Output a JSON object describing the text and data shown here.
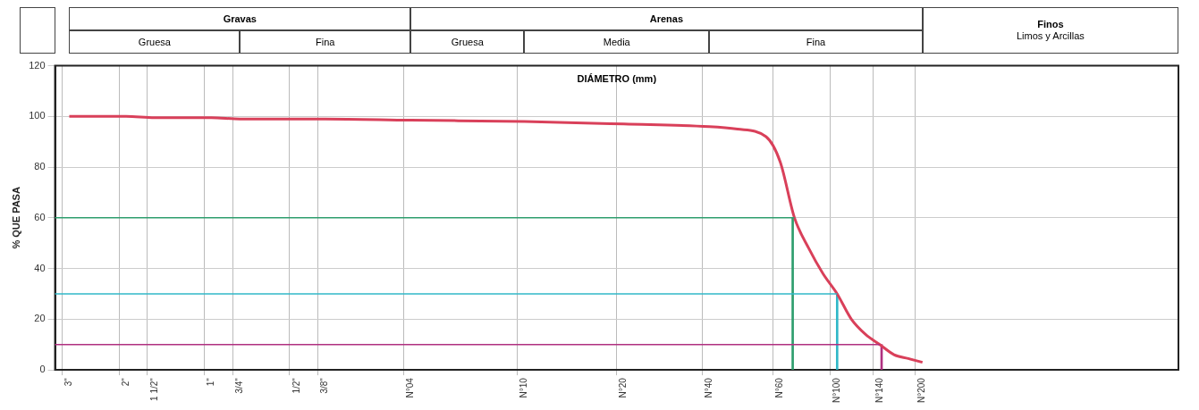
{
  "chart_data": {
    "type": "line",
    "xlabel": "DIÁMETRO (mm)",
    "ylabel": "% QUE PASA",
    "ylim": [
      0,
      120
    ],
    "yticks": [
      0,
      20,
      40,
      60,
      80,
      100,
      120
    ],
    "grid": true,
    "legend": false,
    "marker": "none",
    "categories": [
      null,
      "3\"",
      null,
      null,
      null,
      "2\"",
      null,
      "1 1/2\"",
      null,
      null,
      null,
      "1\"",
      null,
      "3/4\"",
      null,
      null,
      null,
      "1/2\"",
      null,
      "3/8\"",
      null,
      null,
      null,
      null,
      null,
      "N°04",
      null,
      null,
      null,
      null,
      null,
      null,
      null,
      "N°10",
      null,
      null,
      null,
      null,
      null,
      null,
      "N°20",
      null,
      null,
      null,
      null,
      null,
      "N°40",
      null,
      null,
      null,
      null,
      "N°60",
      null,
      null,
      null,
      "N°100",
      null,
      null,
      "N°140",
      null,
      null,
      "N°200",
      null,
      null,
      null,
      null,
      null,
      null,
      null,
      null,
      null,
      null,
      null,
      null,
      null,
      null,
      null,
      null,
      null,
      null
    ],
    "series": [
      {
        "color": "#2e9e6e",
        "values": [
          60,
          null,
          null,
          null,
          null,
          null,
          null,
          null,
          null,
          null,
          null,
          null,
          null,
          null,
          null,
          null,
          null,
          null,
          null,
          null,
          null,
          null,
          null,
          null,
          null,
          null,
          null,
          null,
          null,
          null,
          null,
          null,
          null,
          null,
          null,
          null,
          null,
          null,
          null,
          null,
          null,
          null,
          null,
          null,
          null,
          null,
          null,
          null,
          null,
          null,
          null,
          null,
          60,
          null,
          null,
          null,
          null,
          null,
          null,
          null,
          null,
          null,
          null,
          null,
          null,
          null,
          null,
          null,
          null,
          null,
          null,
          null,
          null,
          null,
          null,
          null,
          null,
          null,
          null,
          null
        ]
      },
      {
        "color": "#30b8c8",
        "values": [
          30,
          null,
          null,
          null,
          null,
          null,
          null,
          null,
          null,
          null,
          null,
          null,
          null,
          null,
          null,
          null,
          null,
          null,
          null,
          null,
          null,
          null,
          null,
          null,
          null,
          null,
          null,
          null,
          null,
          null,
          null,
          null,
          null,
          null,
          null,
          null,
          null,
          null,
          null,
          null,
          null,
          null,
          null,
          null,
          null,
          null,
          null,
          null,
          null,
          null,
          null,
          null,
          null,
          null,
          null,
          30,
          null,
          null,
          null,
          null,
          null,
          null,
          null,
          null,
          null,
          null,
          null,
          null,
          null,
          null,
          null,
          null,
          null,
          null,
          null,
          null,
          null,
          null,
          null,
          null
        ]
      },
      {
        "color": "#b03080",
        "values": [
          10,
          null,
          null,
          null,
          null,
          null,
          null,
          null,
          null,
          null,
          null,
          null,
          null,
          null,
          null,
          null,
          null,
          null,
          null,
          null,
          null,
          null,
          null,
          null,
          null,
          null,
          null,
          null,
          null,
          null,
          null,
          null,
          null,
          null,
          null,
          null,
          null,
          null,
          null,
          null,
          null,
          null,
          null,
          null,
          null,
          null,
          null,
          null,
          null,
          null,
          null,
          null,
          null,
          null,
          null,
          null,
          null,
          null,
          10,
          null,
          null,
          null,
          null,
          null,
          null,
          null,
          null,
          null,
          null,
          null,
          null,
          null,
          null,
          null,
          null,
          null,
          null,
          null,
          null,
          null
        ]
      },
      {
        "type": "bar",
        "color": "#2e9e6e",
        "values": [
          null,
          null,
          null,
          null,
          null,
          null,
          null,
          null,
          null,
          null,
          null,
          null,
          null,
          null,
          null,
          null,
          null,
          null,
          null,
          null,
          null,
          null,
          null,
          null,
          null,
          null,
          null,
          null,
          null,
          null,
          null,
          null,
          null,
          null,
          null,
          null,
          null,
          null,
          null,
          null,
          null,
          null,
          null,
          null,
          null,
          null,
          null,
          null,
          null,
          null,
          null,
          null,
          60,
          null,
          null,
          null,
          null,
          null,
          null,
          null,
          null,
          null,
          null,
          null,
          null,
          null,
          null,
          null,
          null,
          null,
          null,
          null,
          null,
          null,
          null,
          null,
          null,
          null,
          null,
          null
        ]
      },
      {
        "type": "bar",
        "color": "#30b8c8",
        "values": [
          null,
          null,
          null,
          null,
          null,
          null,
          null,
          null,
          null,
          null,
          null,
          null,
          null,
          null,
          null,
          null,
          null,
          null,
          null,
          null,
          null,
          null,
          null,
          null,
          null,
          null,
          null,
          null,
          null,
          null,
          null,
          null,
          null,
          null,
          null,
          null,
          null,
          null,
          null,
          null,
          null,
          null,
          null,
          null,
          null,
          null,
          null,
          null,
          null,
          null,
          null,
          null,
          null,
          null,
          null,
          30,
          null,
          null,
          null,
          null,
          null,
          null,
          null,
          null,
          null,
          null,
          null,
          null,
          null,
          null,
          null,
          null,
          null,
          null,
          null,
          null,
          null,
          null,
          null,
          null
        ]
      },
      {
        "type": "bar",
        "color": "#b03080",
        "values": [
          null,
          null,
          null,
          null,
          null,
          null,
          null,
          null,
          null,
          null,
          null,
          null,
          null,
          null,
          null,
          null,
          null,
          null,
          null,
          null,
          null,
          null,
          null,
          null,
          null,
          null,
          null,
          null,
          null,
          null,
          null,
          null,
          null,
          null,
          null,
          null,
          null,
          null,
          null,
          null,
          null,
          null,
          null,
          null,
          null,
          null,
          null,
          null,
          null,
          null,
          null,
          null,
          null,
          null,
          null,
          null,
          null,
          null,
          10,
          null,
          null,
          null,
          null,
          null,
          null,
          null,
          null,
          null,
          null,
          null,
          null,
          null,
          null,
          null,
          null,
          null,
          null,
          null,
          null,
          null
        ]
      },
      {
        "color": "#d9405a",
        "values": [
          null,
          100,
          null,
          null,
          null,
          100,
          null,
          99.5,
          null,
          null,
          null,
          99.5,
          null,
          99,
          null,
          null,
          null,
          99,
          null,
          99,
          null,
          null,
          null,
          null,
          null,
          98.5,
          null,
          null,
          null,
          null,
          null,
          null,
          null,
          98,
          null,
          null,
          null,
          null,
          null,
          null,
          97,
          null,
          null,
          null,
          null,
          null,
          96,
          null,
          95,
          null,
          92,
          82,
          60,
          48,
          38,
          30,
          20,
          14,
          10,
          6,
          4.5,
          3,
          null,
          null,
          null,
          null,
          null,
          null,
          null,
          null,
          null,
          null,
          null,
          null,
          null,
          null,
          null,
          null,
          null,
          null
        ]
      }
    ],
    "annotations": [
      "Gravas",
      "Arenas",
      "Finos",
      "Limos y Arcillas",
      "Gruesa",
      "Fina",
      "Gruesa",
      "Media",
      "Fina"
    ]
  }
}
